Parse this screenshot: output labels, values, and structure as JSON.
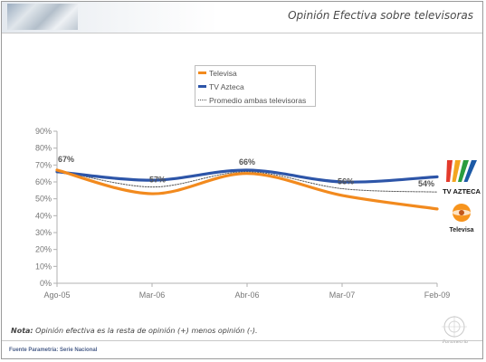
{
  "header": {
    "title": "Opinión Efectiva sobre televisoras"
  },
  "note": {
    "label": "Nota:",
    "text": " Opinión efectiva es la resta de opinión (+) menos opinión (-)."
  },
  "footer": {
    "source": "Fuente Parametría: Serie Nacional",
    "brand": "Parametría"
  },
  "logos": {
    "azteca_text": "TV AZTECA",
    "televisa_text": "Televisa",
    "azteca_colors": [
      "#e33a2c",
      "#f3a51f",
      "#2a9c3e",
      "#1c5aa6"
    ],
    "televisa_color": "#f7941d"
  },
  "chart_data": {
    "type": "line",
    "x": [
      "Ago-05",
      "Mar-06",
      "Abr-06",
      "Mar-07",
      "Feb-09"
    ],
    "ylim": [
      0,
      90
    ],
    "yticks": [
      "0%",
      "10%",
      "20%",
      "30%",
      "40%",
      "50%",
      "60%",
      "70%",
      "80%",
      "90%"
    ],
    "grid": false,
    "legend": "top-center",
    "series": [
      {
        "name": "Televisa",
        "values": [
          67,
          53,
          65,
          52,
          44
        ],
        "color": "#f28a1e",
        "style": "solid"
      },
      {
        "name": "TV Azteca",
        "values": [
          66,
          61,
          67,
          60,
          63
        ],
        "color": "#2d55a8",
        "style": "solid"
      },
      {
        "name": "Promedio ambas televisoras",
        "values": [
          67,
          57,
          66,
          56,
          54
        ],
        "color": "#555555",
        "style": "dotted"
      }
    ],
    "annotations": [
      {
        "x": "Ago-05",
        "text": "67%"
      },
      {
        "x": "Mar-06",
        "text": "57%"
      },
      {
        "x": "Abr-06",
        "text": "66%"
      },
      {
        "x": "Mar-07",
        "text": "56%"
      },
      {
        "x": "Feb-09",
        "text": "54%"
      }
    ]
  }
}
